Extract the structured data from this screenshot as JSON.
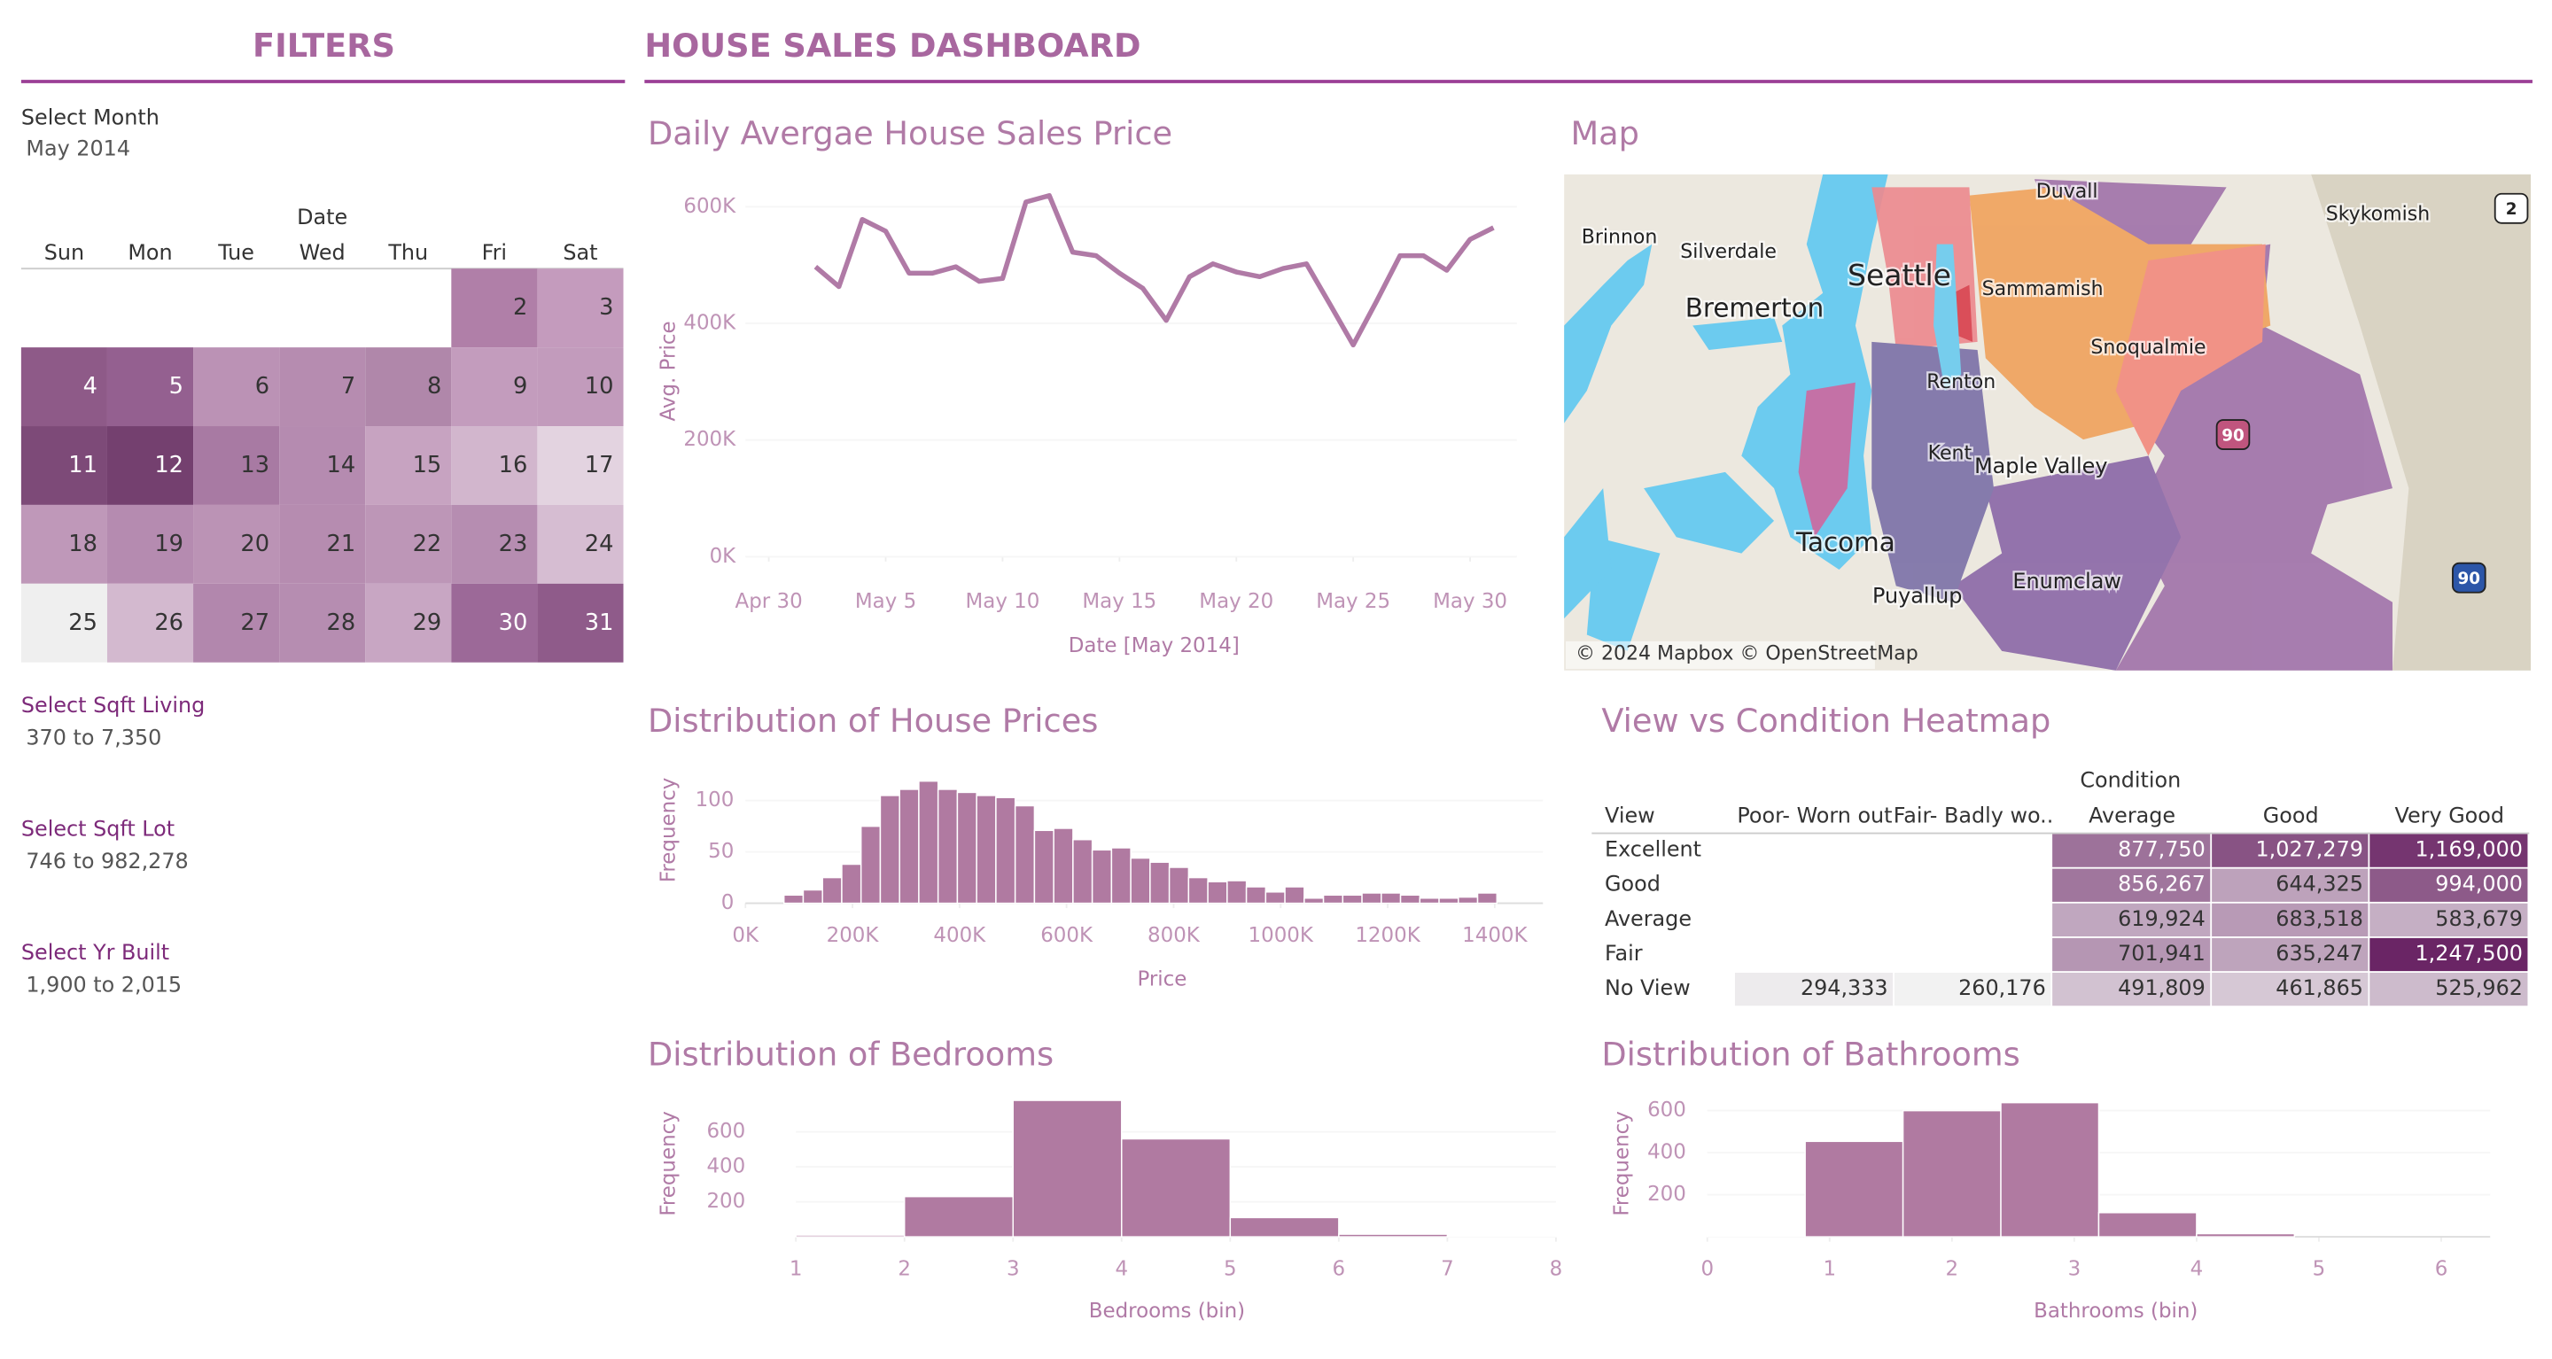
{
  "header": {
    "filters_title": "FILTERS",
    "dashboard_title": "HOUSE SALES DASHBOARD"
  },
  "filters": {
    "month_label": "Select Month",
    "month_value": "May 2014",
    "calendar": {
      "title": "Date",
      "weekdays": [
        "Sun",
        "Mon",
        "Tue",
        "Wed",
        "Thu",
        "Fri",
        "Sat"
      ],
      "days": [
        2,
        3,
        4,
        5,
        6,
        7,
        8,
        9,
        10,
        11,
        12,
        13,
        14,
        15,
        16,
        17,
        18,
        19,
        20,
        21,
        22,
        23,
        24,
        25,
        26,
        27,
        28,
        29,
        30,
        31
      ],
      "colors": [
        "#b07fa8",
        "#c49bbd",
        "#8e5a88",
        "#946090",
        "#bb92b5",
        "#b68cb0",
        "#b087aa",
        "#c39cbd",
        "#c29bbc",
        "#7d4a78",
        "#74406f",
        "#a87aa3",
        "#b58bb0",
        "#c7a3c1",
        "#d2b6cd",
        "#e3d3e0",
        "#bf98b9",
        "#b58bb0",
        "#bb93b5",
        "#b68cb0",
        "#bd96b7",
        "#b68db1",
        "#d6bdd2",
        "#efefef",
        "#d3b9cf",
        "#b287ad",
        "#b68db1",
        "#c8a6c3",
        "#9c6998",
        "#8f5b8a"
      ]
    },
    "ranges": [
      {
        "label": "Select Sqft Living",
        "value": "370 to 7,350"
      },
      {
        "label": "Select Sqft Lot",
        "value": "746 to 982,278"
      },
      {
        "label": "Select Yr Built",
        "value": "1,900 to 2,015"
      }
    ]
  },
  "chart_data": [
    {
      "type": "line",
      "title": "Daily Avergae House Sales Price",
      "x_label": "Date [May 2014]",
      "y_label": "Avg. Price",
      "color": "#b07aa6",
      "x": [
        "2014-05-02",
        "2014-05-03",
        "2014-05-04",
        "2014-05-05",
        "2014-05-06",
        "2014-05-07",
        "2014-05-08",
        "2014-05-09",
        "2014-05-10",
        "2014-05-11",
        "2014-05-12",
        "2014-05-13",
        "2014-05-14",
        "2014-05-15",
        "2014-05-16",
        "2014-05-17",
        "2014-05-18",
        "2014-05-19",
        "2014-05-20",
        "2014-05-21",
        "2014-05-22",
        "2014-05-23",
        "2014-05-24",
        "2014-05-25",
        "2014-05-26",
        "2014-05-27",
        "2014-05-28",
        "2014-05-29",
        "2014-05-30",
        "2014-05-31"
      ],
      "values": [
        497000,
        463000,
        578000,
        558000,
        486000,
        486000,
        497000,
        472000,
        477000,
        608000,
        619000,
        522000,
        516000,
        486000,
        460000,
        405000,
        480000,
        502000,
        488000,
        480000,
        494000,
        502000,
        433000,
        363000,
        438000,
        516000,
        516000,
        491000,
        544000,
        564000
      ],
      "xlim": [
        "2014-04-29",
        "2014-06-01"
      ],
      "xticks": [
        {
          "value": "2014-04-30",
          "label": "Apr 30"
        },
        {
          "value": "2014-05-05",
          "label": "May 5"
        },
        {
          "value": "2014-05-10",
          "label": "May 10"
        },
        {
          "value": "2014-05-15",
          "label": "May 15"
        },
        {
          "value": "2014-05-20",
          "label": "May 20"
        },
        {
          "value": "2014-05-25",
          "label": "May 25"
        },
        {
          "value": "2014-05-30",
          "label": "May 30"
        }
      ],
      "ylim": [
        0,
        650000
      ],
      "yticks": [
        {
          "value": 0,
          "label": "0K"
        },
        {
          "value": 200000,
          "label": "200K"
        },
        {
          "value": 400000,
          "label": "400K"
        },
        {
          "value": 600000,
          "label": "600K"
        }
      ]
    },
    {
      "type": "histogram",
      "title": "Distribution of House Prices",
      "x_label": "Price",
      "y_label": "Frequency",
      "color": "#b07aa1",
      "bins": [
        72000,
        108000,
        144000,
        180000,
        216000,
        252000,
        288000,
        324000,
        360000,
        396000,
        432000,
        468000,
        504000,
        540000,
        576000,
        612000,
        648000,
        684000,
        720000,
        756000,
        792000,
        828000,
        864000,
        900000,
        936000,
        972000,
        1008000,
        1044000,
        1080000,
        1116000,
        1152000,
        1188000,
        1224000,
        1260000,
        1296000,
        1332000,
        1368000,
        1404000
      ],
      "values": [
        8,
        13,
        25,
        38,
        75,
        105,
        111,
        119,
        111,
        108,
        105,
        103,
        95,
        71,
        73,
        62,
        52,
        54,
        44,
        40,
        35,
        25,
        21,
        22,
        16,
        11,
        16,
        5,
        8,
        8,
        10,
        10,
        8,
        5,
        5,
        6,
        10
      ],
      "xlim": [
        0,
        1490000
      ],
      "xticks": [
        {
          "value": 0,
          "label": "0K"
        },
        {
          "value": 200000,
          "label": "200K"
        },
        {
          "value": 400000,
          "label": "400K"
        },
        {
          "value": 600000,
          "label": "600K"
        },
        {
          "value": 800000,
          "label": "800K"
        },
        {
          "value": 1000000,
          "label": "1000K"
        },
        {
          "value": 1200000,
          "label": "1200K"
        },
        {
          "value": 1400000,
          "label": "1400K"
        }
      ],
      "ylim": [
        0,
        130
      ],
      "yticks": [
        0,
        50,
        100
      ]
    },
    {
      "type": "histogram",
      "title": "Distribution of Bedrooms",
      "x_label": "Bedrooms (bin)",
      "y_label": "Frequency",
      "color": "#b07aa1",
      "bins": [
        1,
        2,
        3,
        4,
        5,
        6,
        7,
        8
      ],
      "values": [
        10,
        230,
        780,
        560,
        110,
        15,
        2
      ],
      "xlim": [
        1,
        8
      ],
      "xticks": [
        1,
        2,
        3,
        4,
        5,
        6,
        7,
        8
      ],
      "ylim": [
        0,
        800
      ],
      "yticks": [
        200,
        400,
        600
      ]
    },
    {
      "type": "histogram",
      "title": "Distribution of Bathrooms",
      "x_label": "Bathrooms (bin)",
      "y_label": "Frequency",
      "color": "#b07aa1",
      "bins": [
        0,
        0.8,
        1.6,
        2.4,
        3.2,
        4,
        4.8
      ],
      "values": [
        3,
        454,
        600,
        638,
        115,
        15
      ],
      "xlim": [
        0,
        6.4
      ],
      "xticks": [
        0,
        1,
        2,
        3,
        4,
        5,
        6
      ],
      "ylim": [
        0,
        650
      ],
      "yticks": [
        200,
        400,
        600
      ]
    },
    {
      "type": "heatmap",
      "title": "View vs Condition Heatmap",
      "column_title": "Condition",
      "row_title": "View",
      "columns": [
        "Poor- Worn out",
        "Fair- Badly wo..",
        "Average",
        "Good",
        "Very Good"
      ],
      "rows": [
        "Excellent",
        "Good",
        "Average",
        "Fair",
        "No View"
      ],
      "values": [
        [
          null,
          null,
          877750,
          1027279,
          1169000
        ],
        [
          null,
          null,
          856267,
          644325,
          994000
        ],
        [
          null,
          null,
          619924,
          683518,
          583679
        ],
        [
          null,
          null,
          701941,
          635247,
          1247500
        ],
        [
          294333,
          260176,
          491809,
          461865,
          525962
        ]
      ],
      "value_labels": [
        [
          null,
          null,
          "877,750",
          "1,027,279",
          "1,169,000"
        ],
        [
          null,
          null,
          "856,267",
          "644,325",
          "994,000"
        ],
        [
          null,
          null,
          "619,924",
          "683,518",
          "583,679"
        ],
        [
          null,
          null,
          "701,941",
          "635,247",
          "1,247,500"
        ],
        [
          "294,333",
          "260,176",
          "491,809",
          "461,865",
          "525,962"
        ]
      ],
      "color_range": [
        "#f2f2f2",
        "#6a2565"
      ]
    }
  ],
  "map": {
    "title": "Map",
    "labels": [
      "Brinnon",
      "Silverdale",
      "Bremerton",
      "Seattle",
      "Skykomish",
      "Tacoma",
      "Puyallup",
      "Kent",
      "Maple Valley",
      "Enumclaw",
      "Snoqualmie",
      "Sammamish",
      "Renton",
      "Duvall"
    ],
    "shields": [
      "2",
      "90",
      "90"
    ],
    "attribution": "© 2024 Mapbox © OpenStreetMap"
  }
}
